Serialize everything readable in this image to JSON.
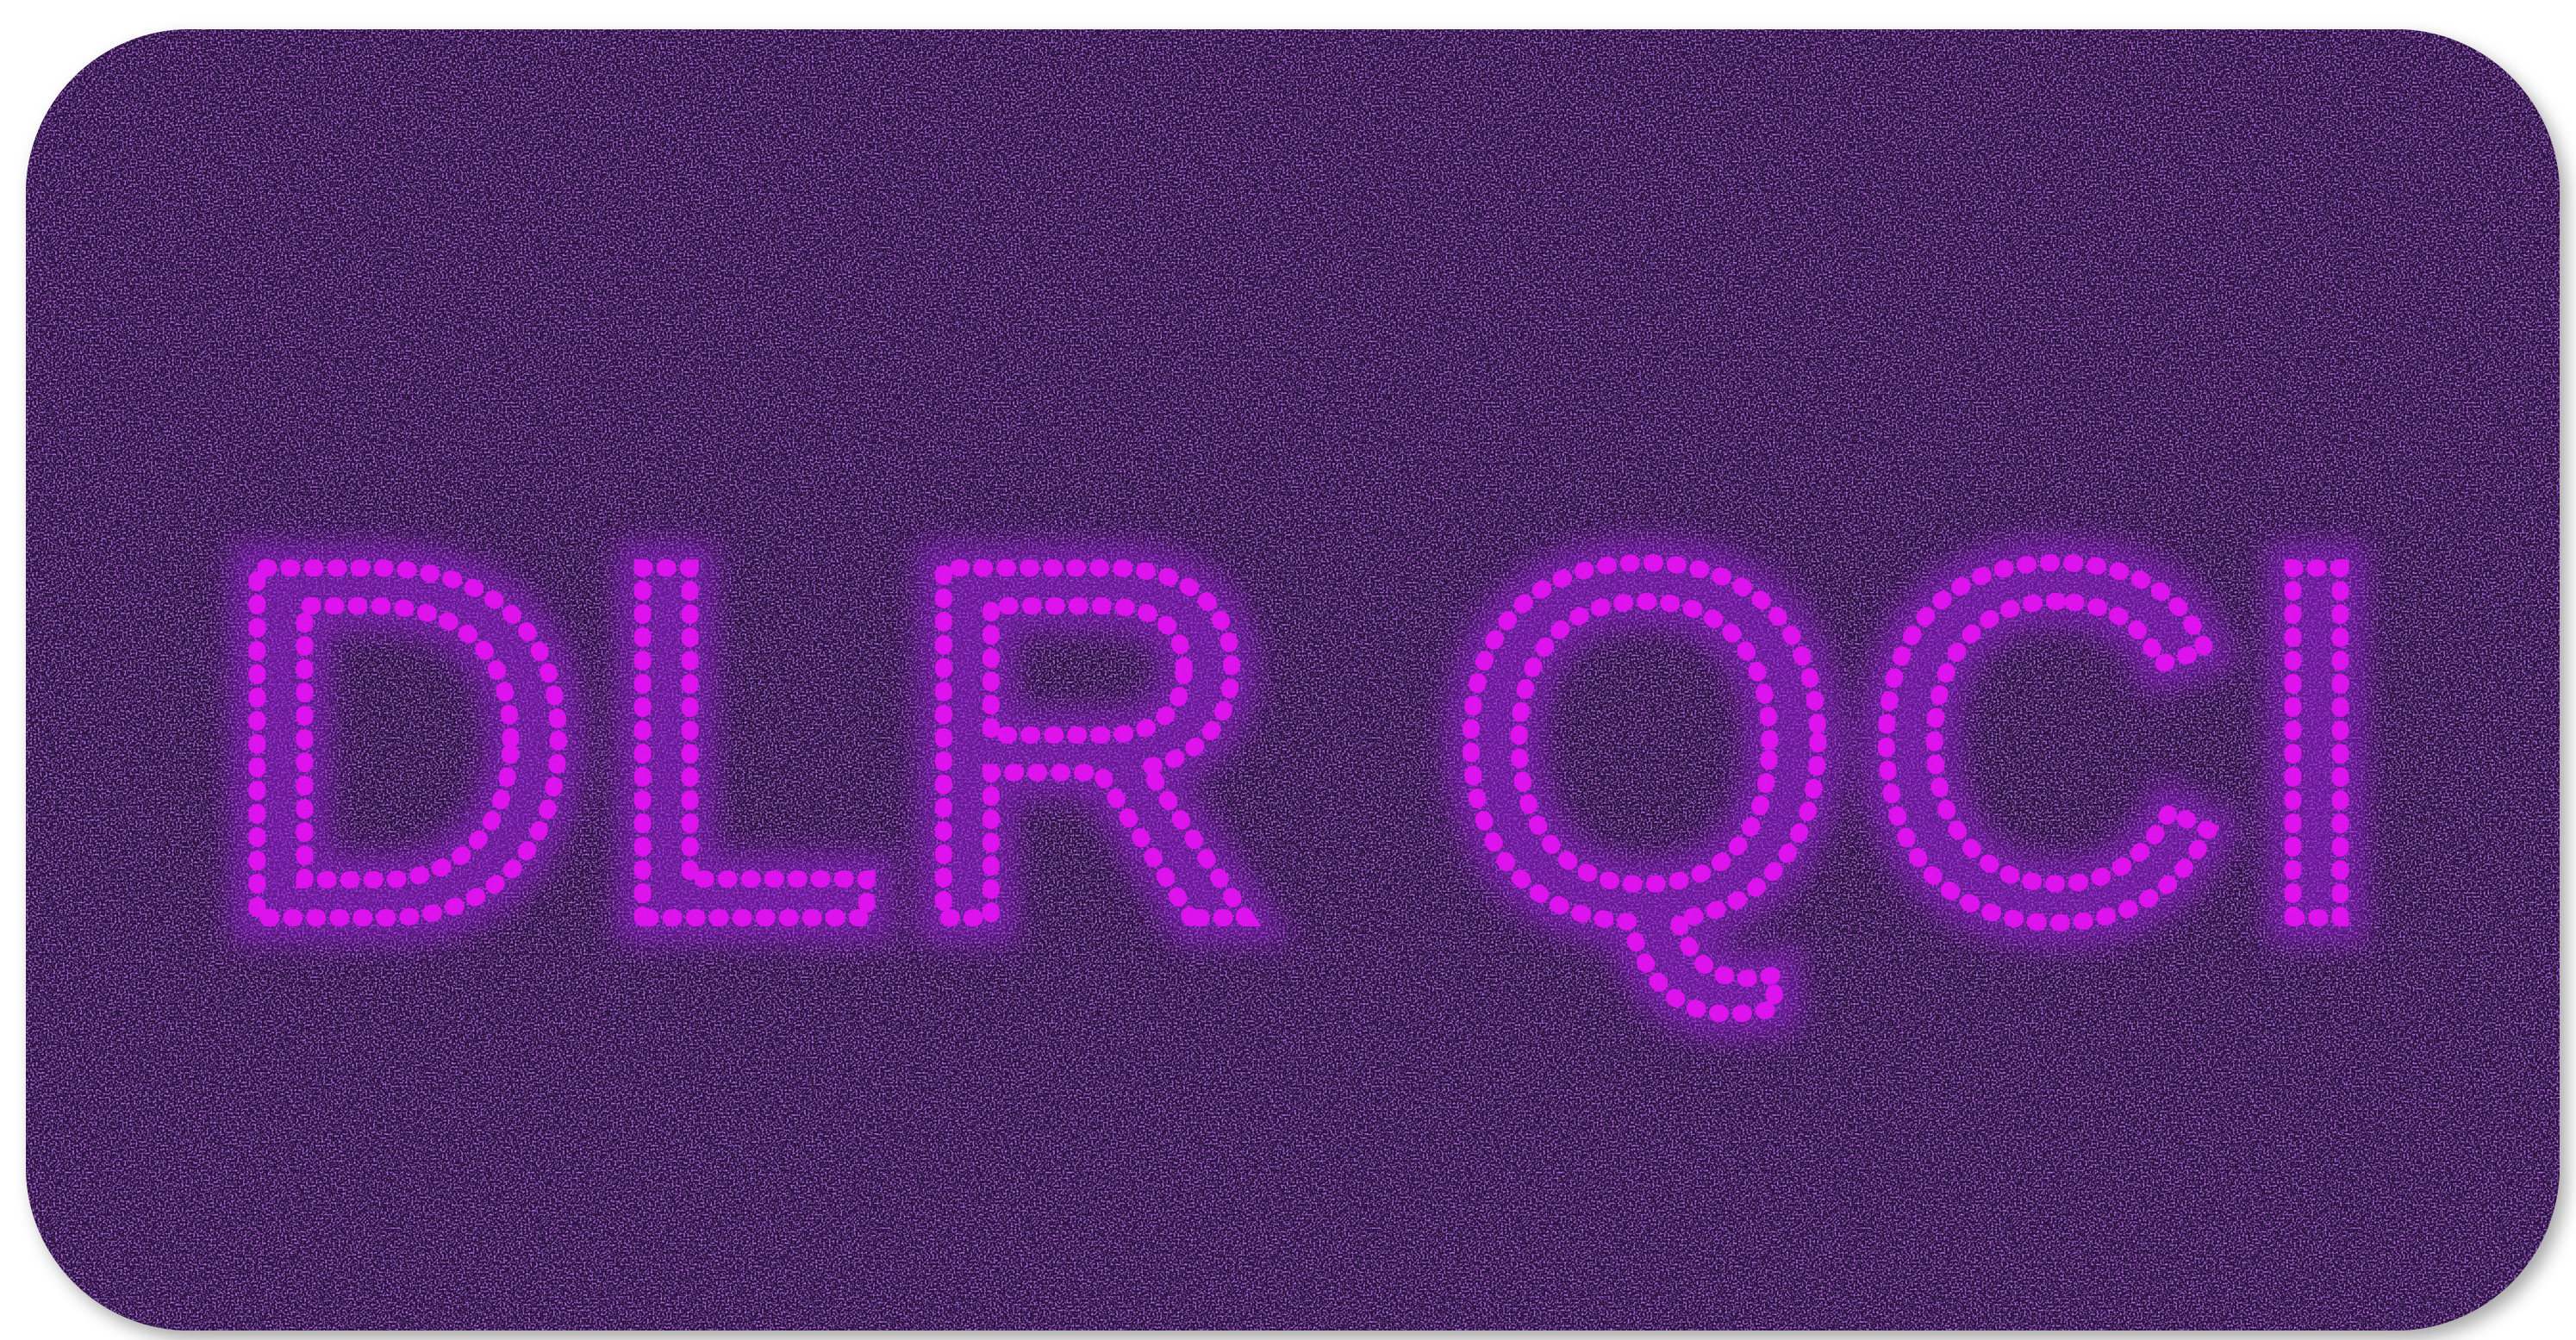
{
  "image": {
    "text": "DLR QCI"
  }
}
